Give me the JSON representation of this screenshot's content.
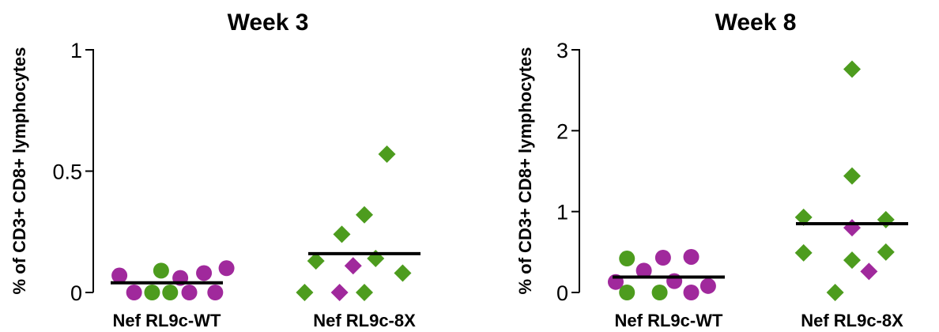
{
  "colors": {
    "green": "#4d9c1e",
    "purple": "#a0299c",
    "axis": "#000000"
  },
  "chart_data": [
    {
      "type": "scatter",
      "title": "Week 3",
      "ylabel": "% of CD3+ CD8+ lymphocytes",
      "xlabel": "",
      "ylim": [
        0,
        1
      ],
      "yticks": [
        0,
        0.5,
        1
      ],
      "ytick_labels": [
        "0",
        "0.5",
        "1"
      ],
      "grid": false,
      "categories": [
        "Nef RL9c-WT",
        "Nef RL9c-8X"
      ],
      "medians": [
        0.04,
        0.16
      ],
      "series": [
        {
          "category": "Nef RL9c-WT",
          "marker": "circle",
          "points": [
            {
              "offset": -0.42,
              "y": 0.07,
              "color": "purple"
            },
            {
              "offset": -0.29,
              "y": 0.0,
              "color": "purple"
            },
            {
              "offset": -0.13,
              "y": 0.0,
              "color": "green"
            },
            {
              "offset": -0.05,
              "y": 0.09,
              "color": "green"
            },
            {
              "offset": 0.03,
              "y": 0.0,
              "color": "green"
            },
            {
              "offset": 0.12,
              "y": 0.06,
              "color": "purple"
            },
            {
              "offset": 0.2,
              "y": 0.0,
              "color": "purple"
            },
            {
              "offset": 0.33,
              "y": 0.08,
              "color": "purple"
            },
            {
              "offset": 0.43,
              "y": 0.0,
              "color": "purple"
            },
            {
              "offset": 0.53,
              "y": 0.1,
              "color": "purple"
            }
          ]
        },
        {
          "category": "Nef RL9c-8X",
          "marker": "diamond",
          "points": [
            {
              "offset": -0.53,
              "y": 0.0,
              "color": "green"
            },
            {
              "offset": -0.43,
              "y": 0.13,
              "color": "green"
            },
            {
              "offset": -0.22,
              "y": 0.0,
              "color": "purple"
            },
            {
              "offset": -0.2,
              "y": 0.24,
              "color": "green"
            },
            {
              "offset": -0.1,
              "y": 0.11,
              "color": "purple"
            },
            {
              "offset": 0.0,
              "y": 0.0,
              "color": "green"
            },
            {
              "offset": 0.0,
              "y": 0.32,
              "color": "green"
            },
            {
              "offset": 0.1,
              "y": 0.14,
              "color": "green"
            },
            {
              "offset": 0.2,
              "y": 0.57,
              "color": "green"
            },
            {
              "offset": 0.34,
              "y": 0.08,
              "color": "green"
            }
          ]
        }
      ]
    },
    {
      "type": "scatter",
      "title": "Week 8",
      "ylabel": "% of CD3+ CD8+ lymphocytes",
      "xlabel": "",
      "ylim": [
        0,
        3
      ],
      "yticks": [
        0,
        1,
        2,
        3
      ],
      "ytick_labels": [
        "0",
        "1",
        "2",
        "3"
      ],
      "grid": false,
      "categories": [
        "Nef RL9c-WT",
        "Nef RL9c-8X"
      ],
      "medians": [
        0.19,
        0.85
      ],
      "series": [
        {
          "category": "Nef RL9c-WT",
          "marker": "circle",
          "points": [
            {
              "offset": -0.47,
              "y": 0.13,
              "color": "purple"
            },
            {
              "offset": -0.37,
              "y": 0.42,
              "color": "green"
            },
            {
              "offset": -0.37,
              "y": 0.0,
              "color": "green"
            },
            {
              "offset": -0.22,
              "y": 0.27,
              "color": "purple"
            },
            {
              "offset": -0.08,
              "y": 0.0,
              "color": "green"
            },
            {
              "offset": -0.05,
              "y": 0.43,
              "color": "purple"
            },
            {
              "offset": 0.05,
              "y": 0.14,
              "color": "purple"
            },
            {
              "offset": 0.2,
              "y": 0.0,
              "color": "purple"
            },
            {
              "offset": 0.2,
              "y": 0.44,
              "color": "purple"
            },
            {
              "offset": 0.35,
              "y": 0.08,
              "color": "purple"
            }
          ]
        },
        {
          "category": "Nef RL9c-8X",
          "marker": "diamond",
          "points": [
            {
              "offset": -0.43,
              "y": 0.93,
              "color": "green"
            },
            {
              "offset": -0.43,
              "y": 0.49,
              "color": "green"
            },
            {
              "offset": -0.15,
              "y": 0.0,
              "color": "green"
            },
            {
              "offset": 0.0,
              "y": 2.76,
              "color": "green"
            },
            {
              "offset": 0.0,
              "y": 1.44,
              "color": "green"
            },
            {
              "offset": 0.0,
              "y": 0.8,
              "color": "purple"
            },
            {
              "offset": 0.0,
              "y": 0.4,
              "color": "green"
            },
            {
              "offset": 0.15,
              "y": 0.26,
              "color": "purple"
            },
            {
              "offset": 0.3,
              "y": 0.9,
              "color": "green"
            },
            {
              "offset": 0.3,
              "y": 0.5,
              "color": "green"
            }
          ]
        }
      ]
    }
  ]
}
